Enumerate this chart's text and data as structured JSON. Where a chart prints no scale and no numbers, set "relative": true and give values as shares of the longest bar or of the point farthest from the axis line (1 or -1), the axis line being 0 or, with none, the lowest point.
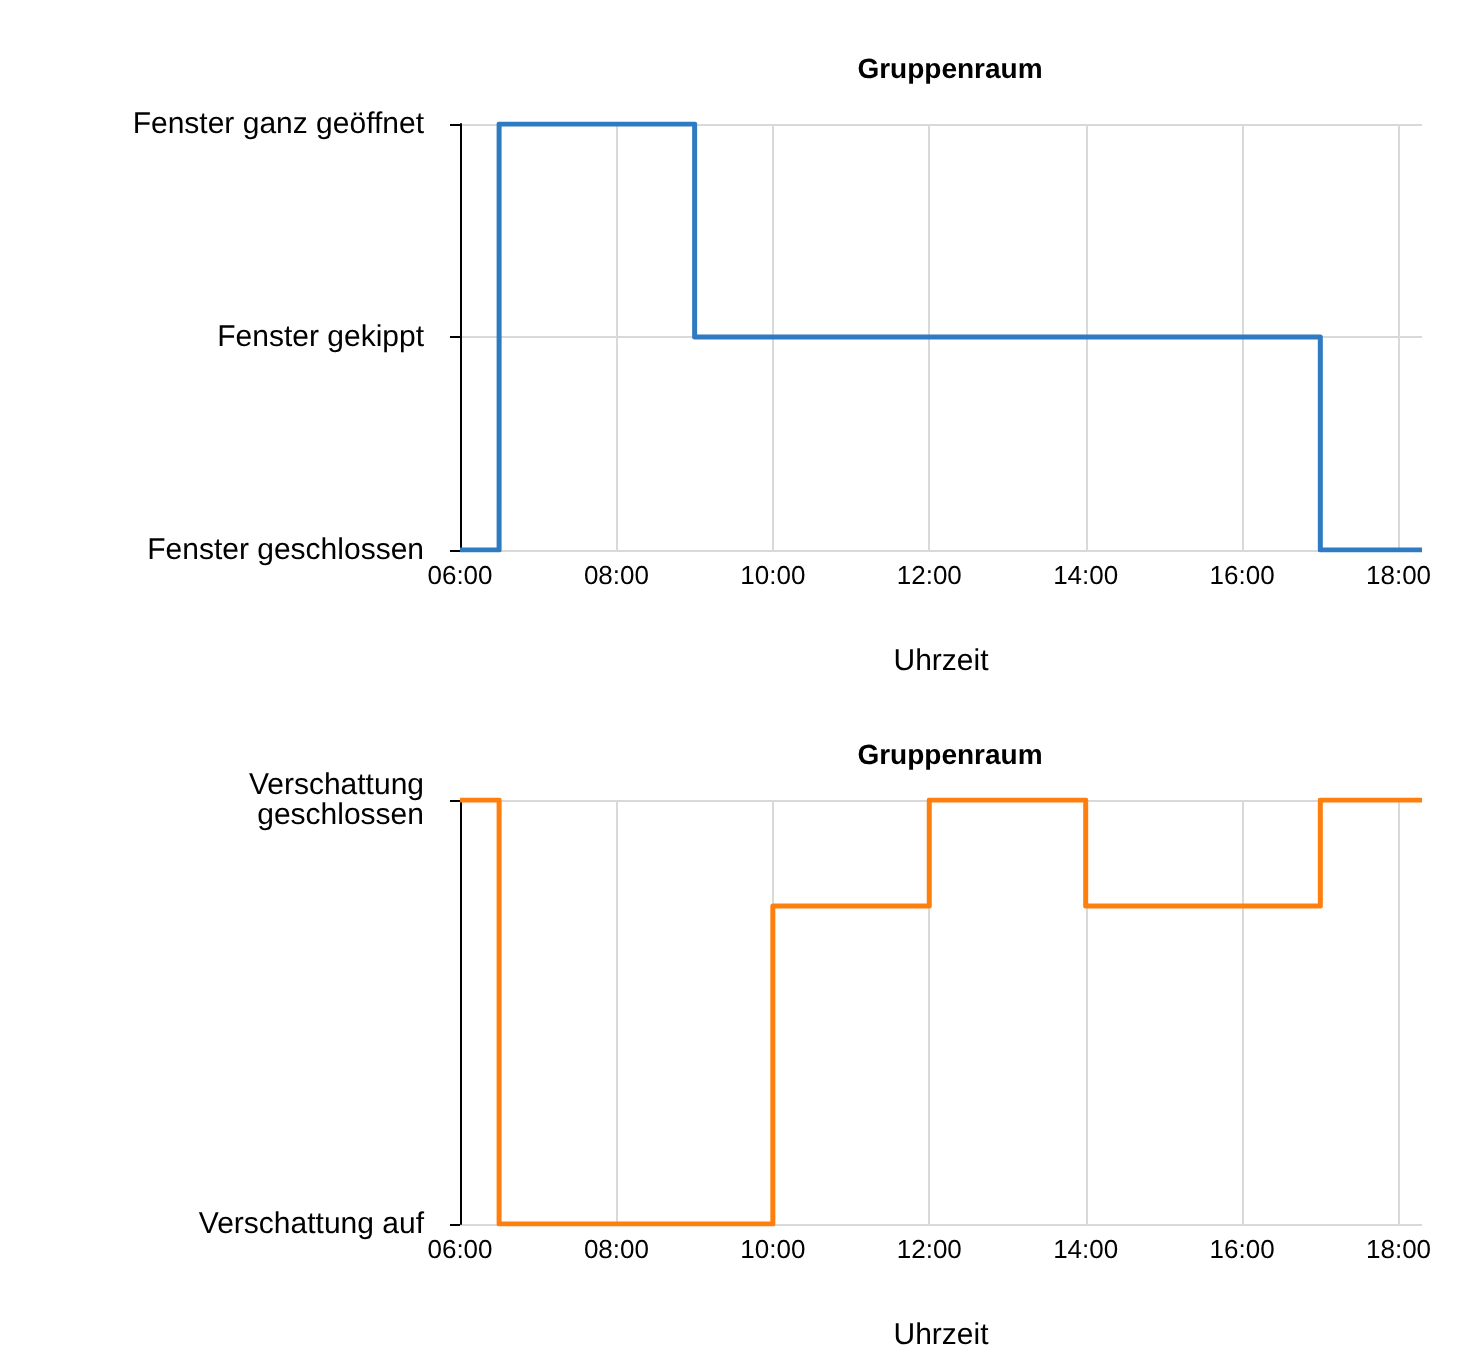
{
  "chart_data": [
    {
      "type": "step",
      "title": "Gruppenraum",
      "xlabel": "Uhrzeit",
      "x": [
        6,
        6.5,
        9,
        17,
        18.3
      ],
      "values": [
        0,
        1,
        0.5,
        0,
        0
      ],
      "relative": true,
      "color": "#2f7bc1",
      "marker": "none",
      "grid": true,
      "xlim": [
        6,
        18.3
      ],
      "xticks": [
        {
          "value": 6,
          "label": "06:00"
        },
        {
          "value": 8,
          "label": "08:00"
        },
        {
          "value": 10,
          "label": "10:00"
        },
        {
          "value": 12,
          "label": "12:00"
        },
        {
          "value": 14,
          "label": "14:00"
        },
        {
          "value": 16,
          "label": "16:00"
        },
        {
          "value": 18,
          "label": "18:00"
        }
      ],
      "annotations": [
        "Fenster geschlossen",
        "Fenster gekippt",
        "Fenster ganz geöffnet"
      ]
    },
    {
      "type": "step",
      "title": "Gruppenraum",
      "xlabel": "Uhrzeit",
      "x": [
        6,
        6.5,
        10,
        12,
        14,
        17,
        18.3
      ],
      "values": [
        1,
        0,
        0.75,
        1,
        0.75,
        1,
        1
      ],
      "relative": true,
      "color": "#ff7f0e",
      "marker": "none",
      "grid": true,
      "xlim": [
        6,
        18.3
      ],
      "xticks": [
        {
          "value": 6,
          "label": "06:00"
        },
        {
          "value": 8,
          "label": "08:00"
        },
        {
          "value": 10,
          "label": "10:00"
        },
        {
          "value": 12,
          "label": "12:00"
        },
        {
          "value": 14,
          "label": "14:00"
        },
        {
          "value": 16,
          "label": "16:00"
        },
        {
          "value": 18,
          "label": "18:00"
        }
      ],
      "annotations": [
        "Verschattung auf",
        "Verschattung\ngeschlossen"
      ]
    }
  ]
}
